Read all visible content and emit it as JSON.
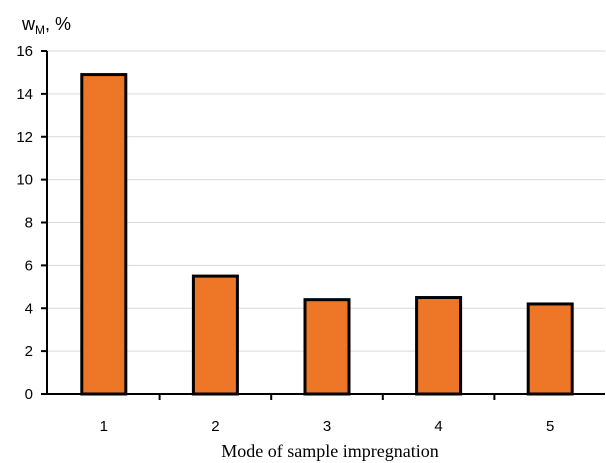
{
  "chart_data": {
    "type": "bar",
    "categories": [
      "1",
      "2",
      "3",
      "4",
      "5"
    ],
    "values": [
      14.9,
      5.5,
      4.4,
      4.5,
      4.2
    ],
    "xlabel": "Mode of sample impregnation",
    "ylabel": {
      "main": "w",
      "sub": "M",
      "unit": ", %"
    },
    "ylim": [
      0,
      16
    ],
    "yticks": [
      "0",
      "2",
      "4",
      "6",
      "8",
      "10",
      "12",
      "14",
      "16"
    ],
    "grid": true,
    "colors": {
      "bar": "#ED7627",
      "bar_outline": "#000000",
      "grid": "#d9d9d9"
    }
  }
}
